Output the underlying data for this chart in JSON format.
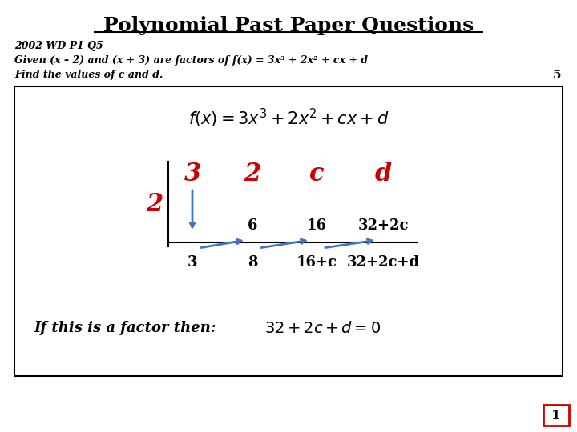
{
  "title": "Polynomial Past Paper Questions",
  "subtitle_line1": "2002 WD P1 Q5",
  "subtitle_line2": "Given (x – 2) and (x + 3) are factors of f(x) = 3x³ + 2x² + cx + d",
  "subtitle_line3": "Find the values of c and d.",
  "marks": "5",
  "red_row": [
    "3",
    "2",
    "c",
    "d"
  ],
  "multiplier": "2",
  "middle_row": [
    "6",
    "16",
    "32+2c"
  ],
  "bottom_row": [
    "3",
    "8",
    "16+c",
    "32+2c+d"
  ],
  "conclusion_left": "If this is a factor then:",
  "conclusion_right": "32 + 2c + d = 0",
  "page_num": "1",
  "bg_color": "#ffffff",
  "box_border_color": "#000000",
  "title_color": "#000000",
  "red_color": "#cc0000",
  "blue_color": "#4472c4",
  "black_color": "#000000"
}
